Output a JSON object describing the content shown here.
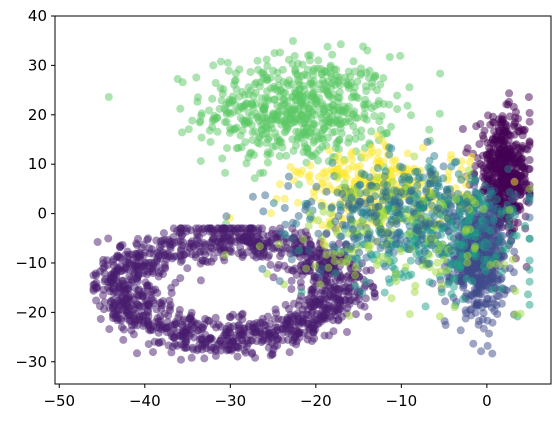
{
  "chart_data": {
    "type": "scatter",
    "title": "",
    "xlabel": "",
    "ylabel": "",
    "xlim": [
      -50.5,
      7.5
    ],
    "ylim": [
      -34.5,
      40
    ],
    "grid": false,
    "legend": "none",
    "xticks": [
      -50,
      -40,
      -30,
      -20,
      -10,
      0
    ],
    "yticks": [
      -30,
      -20,
      -10,
      0,
      10,
      20,
      30,
      40
    ],
    "marker_alpha": 0.5,
    "clusters": [
      {
        "color": "#5ac864",
        "points": 600,
        "center": [
          -22,
          21
        ],
        "spread": [
          5.5,
          5.5
        ],
        "shape": "blob"
      },
      {
        "color": "#481b6d",
        "points": 1300,
        "center": [
          -30,
          -15
        ],
        "spread": [
          15,
          12
        ],
        "shape": "ring"
      },
      {
        "color": "#440154",
        "points": 500,
        "center": [
          2,
          8
        ],
        "spread": [
          1.6,
          5.5
        ],
        "shape": "blob"
      },
      {
        "color": "#3e4a89",
        "points": 500,
        "center": [
          -1,
          -9
        ],
        "spread": [
          1.6,
          5.5
        ],
        "shape": "blob"
      },
      {
        "color": "#fde725",
        "points": 300,
        "center": [
          -12,
          5
        ],
        "spread": [
          5.0,
          4.0
        ],
        "shape": "blob"
      },
      {
        "color": "#26828e",
        "points": 300,
        "center": [
          -8,
          1
        ],
        "spread": [
          5.5,
          4.5
        ],
        "shape": "blob"
      },
      {
        "color": "#1fa088",
        "points": 200,
        "center": [
          -6,
          -6
        ],
        "spread": [
          6.0,
          5.0
        ],
        "shape": "blob"
      },
      {
        "color": "#a0da39",
        "points": 150,
        "center": [
          -10,
          -4
        ],
        "spread": [
          7.0,
          6.0
        ],
        "shape": "blob"
      },
      {
        "color": "#31688e",
        "points": 150,
        "center": [
          -12,
          -2
        ],
        "spread": [
          7.0,
          5.0
        ],
        "shape": "blob"
      }
    ]
  }
}
